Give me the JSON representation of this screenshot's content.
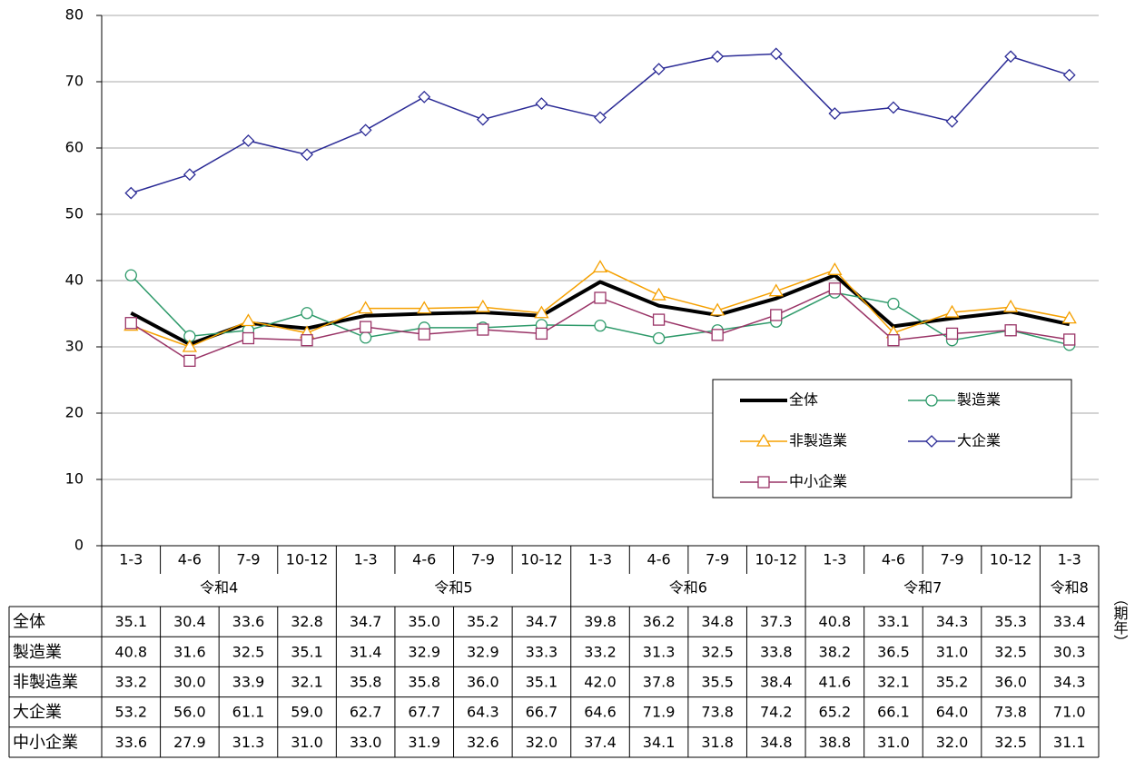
{
  "chart_data": {
    "type": "line",
    "categories": [
      "1-3",
      "4-6",
      "7-9",
      "10-12",
      "1-3",
      "4-6",
      "7-9",
      "10-12",
      "1-3",
      "4-6",
      "7-9",
      "10-12",
      "1-3",
      "4-6",
      "7-9",
      "10-12",
      "1-3"
    ],
    "years": [
      "令和4",
      "令和4",
      "令和4",
      "令和4",
      "令和5",
      "令和5",
      "令和5",
      "令和5",
      "令和6",
      "令和6",
      "令和6",
      "令和6",
      "令和7",
      "令和7",
      "令和7",
      "令和7",
      "令和8"
    ],
    "x_label": "（期年）",
    "ylim": [
      0,
      80
    ],
    "yticks": [
      0,
      10,
      20,
      30,
      40,
      50,
      60,
      70,
      80
    ],
    "grid": true,
    "legend": "lower right",
    "series": [
      {
        "name": "全体",
        "color": "#000000",
        "marker": "none",
        "values": [
          35.1,
          30.4,
          33.6,
          32.8,
          34.7,
          35.0,
          35.2,
          34.7,
          39.8,
          36.2,
          34.8,
          37.3,
          40.8,
          33.1,
          34.3,
          35.3,
          33.4
        ],
        "value_labels": [
          "35.1",
          "30.4",
          "33.6",
          "32.8",
          "34.7",
          "35.0",
          "35.2",
          "34.7",
          "39.8",
          "36.2",
          "34.8",
          "37.3",
          "40.8",
          "33.1",
          "34.3",
          "35.3",
          "33.4"
        ]
      },
      {
        "name": "製造業",
        "color": "#2e9a6a",
        "marker": "circle",
        "values": [
          40.8,
          31.6,
          32.5,
          35.1,
          31.4,
          32.9,
          32.9,
          33.3,
          33.2,
          31.3,
          32.5,
          33.8,
          38.2,
          36.5,
          31.0,
          32.5,
          30.3
        ],
        "value_labels": [
          "40.8",
          "31.6",
          "32.5",
          "35.1",
          "31.4",
          "32.9",
          "32.9",
          "33.3",
          "33.2",
          "31.3",
          "32.5",
          "33.8",
          "38.2",
          "36.5",
          "31.0",
          "32.5",
          "30.3"
        ]
      },
      {
        "name": "非製造業",
        "color": "#f5a000",
        "marker": "triangle",
        "values": [
          33.2,
          30.0,
          33.9,
          32.1,
          35.8,
          35.8,
          36.0,
          35.1,
          42.0,
          37.8,
          35.5,
          38.4,
          41.6,
          32.1,
          35.2,
          36.0,
          34.3
        ],
        "value_labels": [
          "33.2",
          "30.0",
          "33.9",
          "32.1",
          "35.8",
          "35.8",
          "36.0",
          "35.1",
          "42.0",
          "37.8",
          "35.5",
          "38.4",
          "41.6",
          "32.1",
          "35.2",
          "36.0",
          "34.3"
        ]
      },
      {
        "name": "大企業",
        "color": "#2b2b96",
        "marker": "diamond",
        "values": [
          53.2,
          56.0,
          61.1,
          59.0,
          62.7,
          67.7,
          64.3,
          66.7,
          64.6,
          71.9,
          73.8,
          74.2,
          65.2,
          66.1,
          64.0,
          73.8,
          71.0
        ],
        "value_labels": [
          "53.2",
          "56.0",
          "61.1",
          "59.0",
          "62.7",
          "67.7",
          "64.3",
          "66.7",
          "64.6",
          "71.9",
          "73.8",
          "74.2",
          "65.2",
          "66.1",
          "64.0",
          "73.8",
          "71.0"
        ]
      },
      {
        "name": "中小企業",
        "color": "#993366",
        "marker": "square",
        "values": [
          33.6,
          27.9,
          31.3,
          31.0,
          33.0,
          31.9,
          32.6,
          32.0,
          37.4,
          34.1,
          31.8,
          34.8,
          38.8,
          31.0,
          32.0,
          32.5,
          31.1
        ],
        "value_labels": [
          "33.6",
          "27.9",
          "31.3",
          "31.0",
          "33.0",
          "31.9",
          "32.6",
          "32.0",
          "37.4",
          "34.1",
          "31.8",
          "34.8",
          "38.8",
          "31.0",
          "32.0",
          "32.5",
          "31.1"
        ]
      }
    ]
  }
}
